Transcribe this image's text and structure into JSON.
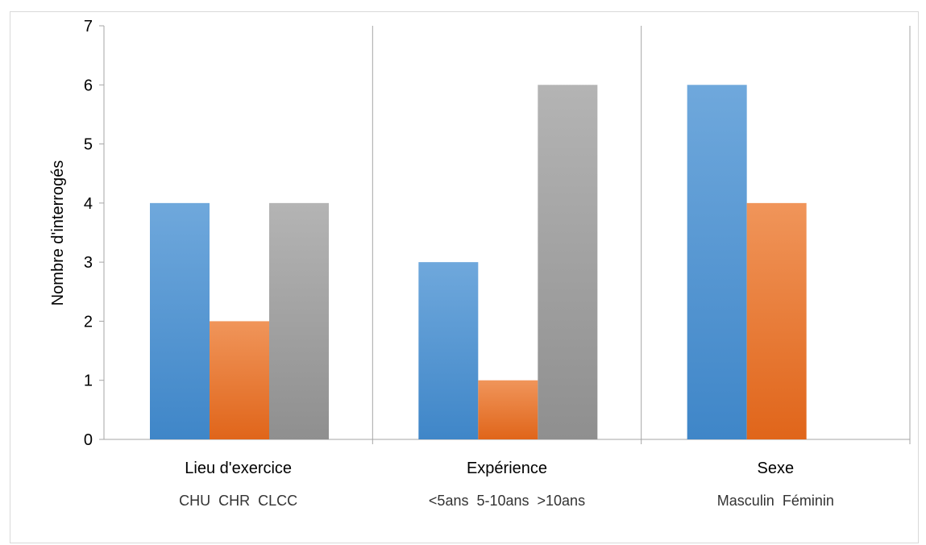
{
  "chart_data": {
    "type": "bar",
    "ylabel": "Nombre d'interrogés",
    "ylim": [
      0,
      7
    ],
    "yticks": [
      "0",
      "1",
      "2",
      "3",
      "4",
      "5",
      "6",
      "7"
    ],
    "grid": "vertical group separators",
    "groups": [
      {
        "label": "Lieu d'exercice",
        "sublabel": "CHU  CHR  CLCC",
        "categories": [
          "CHU",
          "CHR",
          "CLCC"
        ],
        "values": [
          4,
          2,
          4
        ]
      },
      {
        "label": "Expérience",
        "sublabel": "<5ans  5-10ans  >10ans",
        "categories": [
          "<5ans",
          "5-10ans",
          ">10ans"
        ],
        "values": [
          3,
          1,
          6
        ]
      },
      {
        "label": "Sexe",
        "sublabel": "Masculin  Féminin",
        "categories": [
          "Masculin",
          "Féminin"
        ],
        "values": [
          6,
          4
        ]
      }
    ],
    "colors": [
      "#5b9bd5",
      "#ed7d31",
      "#a5a5a5"
    ]
  }
}
